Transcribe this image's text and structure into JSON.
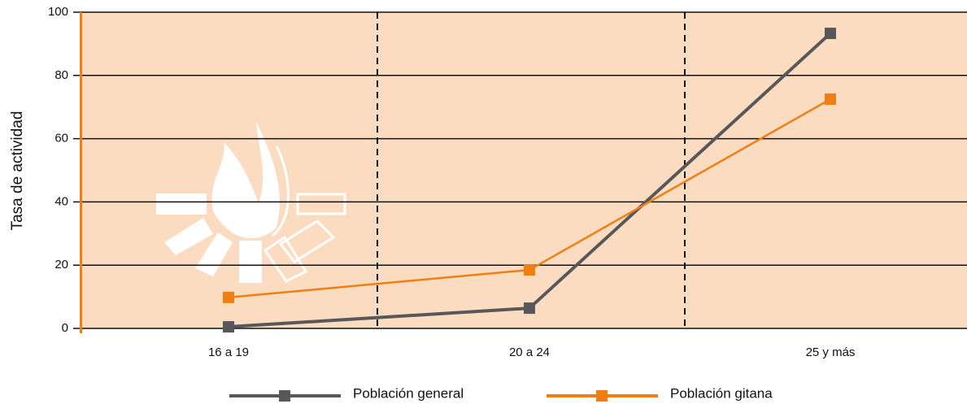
{
  "chart_data": {
    "type": "line",
    "y_label": "Tasa de actividad",
    "categories": [
      "16 a 19",
      "20 a 24",
      "25 y más"
    ],
    "series": [
      {
        "name": "Población general",
        "color": "#58585a",
        "values": [
          0.5,
          6.4,
          93.3
        ]
      },
      {
        "name": "Población gitana",
        "color": "#f07f13",
        "values": [
          9.8,
          18.5,
          72.5
        ]
      }
    ],
    "ylim": [
      0,
      100
    ],
    "yticks": [
      0,
      20,
      40,
      60,
      80,
      100
    ],
    "grid": true
  }
}
